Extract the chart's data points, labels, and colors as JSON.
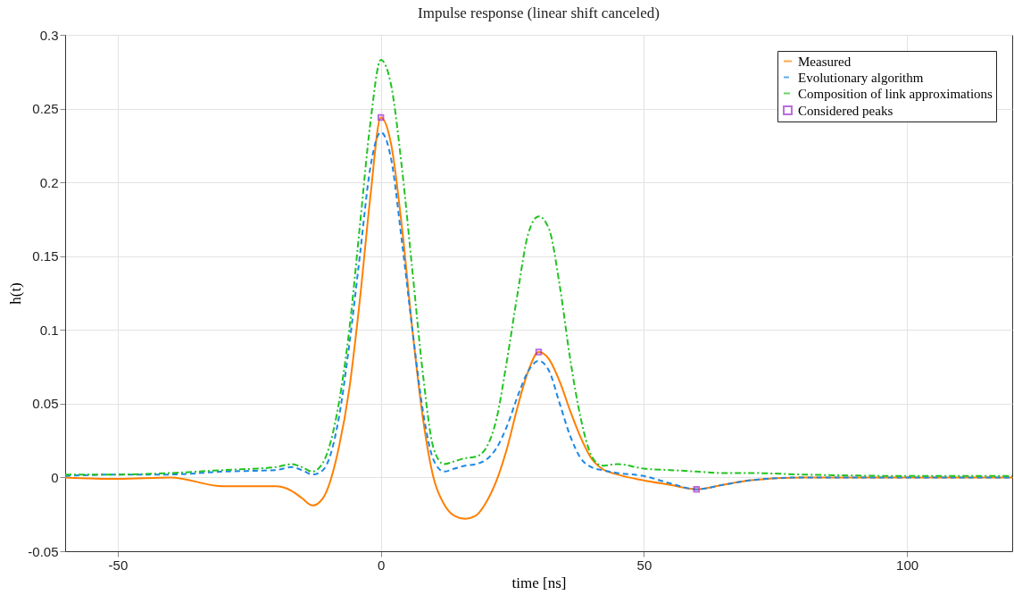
{
  "chart_data": {
    "type": "line",
    "title": "Impulse response (linear shift canceled)",
    "xlabel": "time [ns]",
    "ylabel": "h(t)",
    "x": [
      -60,
      -50,
      -40,
      -30,
      -20,
      -17,
      -15,
      -13,
      -11,
      -8,
      -6,
      -4,
      -2,
      0,
      2,
      4,
      6,
      8,
      10,
      12,
      14,
      16,
      18,
      20,
      22,
      24,
      26,
      28,
      30,
      32,
      34,
      36,
      38,
      40,
      42,
      45,
      50,
      55,
      60,
      65,
      70,
      80,
      100,
      120
    ],
    "series": [
      {
        "name": "Measured",
        "color": "#ff7f00",
        "line_style": "solid",
        "values": [
          0,
          -0.001,
          0,
          -0.006,
          -0.006,
          -0.009,
          -0.014,
          -0.019,
          -0.014,
          0.02,
          0.06,
          0.12,
          0.19,
          0.244,
          0.225,
          0.17,
          0.1,
          0.04,
          0,
          -0.018,
          -0.026,
          -0.028,
          -0.026,
          -0.017,
          -0.002,
          0.02,
          0.048,
          0.072,
          0.085,
          0.08,
          0.065,
          0.045,
          0.027,
          0.013,
          0.006,
          0.002,
          -0.002,
          -0.005,
          -0.008,
          -0.005,
          -0.002,
          0,
          0,
          0
        ]
      },
      {
        "name": "Evolutionary algorithm",
        "color": "#1e88e5",
        "line_style": "dashed",
        "values": [
          0.001,
          0.002,
          0.002,
          0.004,
          0.005,
          0.007,
          0.005,
          0.002,
          0.005,
          0.04,
          0.09,
          0.15,
          0.21,
          0.234,
          0.215,
          0.16,
          0.1,
          0.045,
          0.012,
          0.004,
          0.006,
          0.008,
          0.009,
          0.012,
          0.02,
          0.035,
          0.055,
          0.072,
          0.079,
          0.072,
          0.05,
          0.028,
          0.013,
          0.007,
          0.005,
          0.003,
          0.001,
          -0.004,
          -0.008,
          -0.005,
          -0.002,
          0,
          0,
          0
        ]
      },
      {
        "name": "Composition of link approximations",
        "color": "#22c322",
        "line_style": "dashdot",
        "values": [
          0.002,
          0.002,
          0.003,
          0.005,
          0.007,
          0.009,
          0.007,
          0.004,
          0.01,
          0.05,
          0.1,
          0.17,
          0.24,
          0.283,
          0.265,
          0.21,
          0.14,
          0.07,
          0.02,
          0.009,
          0.011,
          0.013,
          0.014,
          0.02,
          0.04,
          0.08,
          0.125,
          0.165,
          0.177,
          0.168,
          0.13,
          0.08,
          0.04,
          0.015,
          0.008,
          0.009,
          0.006,
          0.005,
          0.004,
          0.003,
          0.003,
          0.002,
          0.001,
          0.001
        ]
      },
      {
        "name": "Considered peaks",
        "type": "scatter",
        "marker": "square",
        "color": "#a030d0",
        "x": [
          0,
          30,
          60
        ],
        "values": [
          0.244,
          0.085,
          -0.008
        ]
      }
    ],
    "xlim": [
      -60,
      120
    ],
    "xticks": [
      -50,
      0,
      50,
      100
    ],
    "ylim": [
      -0.05,
      0.3
    ],
    "yticks": [
      -0.05,
      0,
      0.05,
      0.1,
      0.15,
      0.2,
      0.25,
      0.3
    ],
    "grid": true,
    "legend": "top right"
  }
}
